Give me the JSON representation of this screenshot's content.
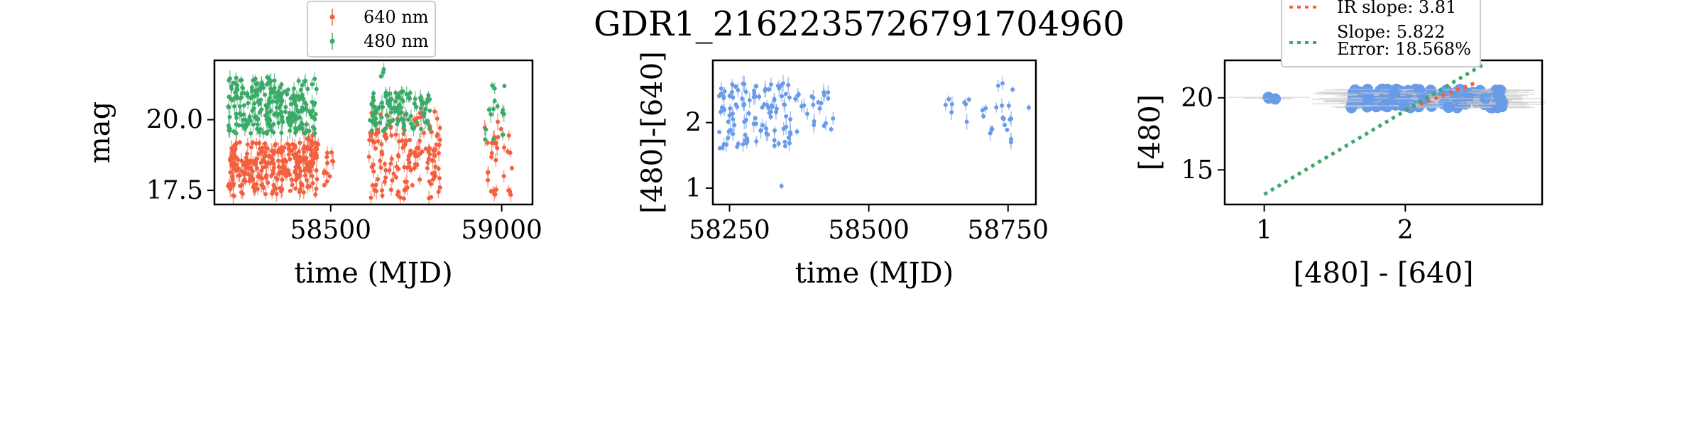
{
  "figure_title": "GDR1_2162235726791704960",
  "colors": {
    "red": "#f4603f",
    "green": "#3aaa68",
    "blue": "#6a9be8",
    "grey": "#c8c8c8"
  },
  "chart_data": [
    {
      "type": "scatter",
      "name": "light-curve",
      "xlabel": "time (MJD)",
      "ylabel": "mag",
      "xlim": [
        58160,
        59090
      ],
      "ylim": [
        22.1,
        17.0
      ],
      "y_inverted": true,
      "xticks": [
        {
          "value": 58500,
          "label": "58500"
        },
        {
          "value": 59000,
          "label": "59000"
        }
      ],
      "yticks": [
        {
          "value": 17.5,
          "label": "17.5"
        },
        {
          "value": 20.0,
          "label": "20.0"
        }
      ],
      "legend": {
        "position": "top-center-outside",
        "entries": [
          "640 nm",
          "480 nm"
        ]
      },
      "series": [
        {
          "name": "640 nm",
          "color": "#f4603f",
          "clusters": [
            {
              "x0": 58200,
              "x1": 58460,
              "ymin": 17.3,
              "ymax": 19.2,
              "n": 260
            },
            {
              "x0": 58420,
              "x1": 58465,
              "ymin": 18.2,
              "ymax": 19.6,
              "n": 30
            },
            {
              "x0": 58480,
              "x1": 58510,
              "ymin": 17.6,
              "ymax": 19.0,
              "n": 12
            },
            {
              "x0": 58610,
              "x1": 58820,
              "ymin": 17.2,
              "ymax": 20.3,
              "n": 150
            },
            {
              "x0": 58950,
              "x1": 59030,
              "ymin": 17.3,
              "ymax": 20.0,
              "n": 30
            }
          ]
        },
        {
          "name": "480 nm",
          "color": "#3aaa68",
          "clusters": [
            {
              "x0": 58200,
              "x1": 58460,
              "ymin": 19.5,
              "ymax": 21.5,
              "n": 260
            },
            {
              "x0": 58610,
              "x1": 58790,
              "ymin": 19.6,
              "ymax": 21.0,
              "n": 110
            },
            {
              "x0": 58640,
              "x1": 58660,
              "ymin": 21.4,
              "ymax": 21.9,
              "n": 3
            },
            {
              "x0": 58950,
              "x1": 59010,
              "ymin": 19.3,
              "ymax": 21.3,
              "n": 16
            }
          ]
        }
      ]
    },
    {
      "type": "scatter",
      "name": "color-curve",
      "xlabel": "time (MJD)",
      "ylabel": "[480]-[640]",
      "xlim": [
        58220,
        58800
      ],
      "ylim": [
        2.95,
        0.75
      ],
      "y_inverted": true,
      "xticks": [
        {
          "value": 58250,
          "label": "58250"
        },
        {
          "value": 58500,
          "label": "58500"
        },
        {
          "value": 58750,
          "label": "58750"
        }
      ],
      "yticks": [
        {
          "value": 1,
          "label": "1"
        },
        {
          "value": 2,
          "label": "2"
        }
      ],
      "series": [
        {
          "name": "",
          "color": "#6a9be8",
          "clusters": [
            {
              "x0": 58230,
              "x1": 58360,
              "ymin": 1.6,
              "ymax": 2.6,
              "n": 110
            },
            {
              "x0": 58360,
              "x1": 58440,
              "ymin": 1.8,
              "ymax": 2.5,
              "n": 25
            },
            {
              "x0": 58340,
              "x1": 58345,
              "ymin": 0.95,
              "ymax": 1.1,
              "n": 1
            },
            {
              "x0": 58630,
              "x1": 58680,
              "ymin": 2.0,
              "ymax": 2.5,
              "n": 8
            },
            {
              "x0": 58700,
              "x1": 58760,
              "ymin": 1.7,
              "ymax": 2.6,
              "n": 20
            },
            {
              "x0": 58785,
              "x1": 58790,
              "ymin": 2.1,
              "ymax": 2.3,
              "n": 1
            }
          ]
        }
      ]
    },
    {
      "type": "scatter",
      "name": "color-magnitude",
      "xlabel": "[480] - [640]",
      "ylabel": "[480]",
      "xlim": [
        0.72,
        2.97
      ],
      "ylim": [
        22.6,
        12.6
      ],
      "y_inverted": true,
      "xticks": [
        {
          "value": 1,
          "label": "1"
        },
        {
          "value": 2,
          "label": "2"
        }
      ],
      "yticks": [
        {
          "value": 15,
          "label": "15"
        },
        {
          "value": 20,
          "label": "20"
        }
      ],
      "legend": {
        "position": "top-center-outside",
        "entries": [
          "IR slope: 3.81",
          "Slope: 5.822\nError: 18.568%"
        ]
      },
      "points": {
        "color": "#6a9be8",
        "clusters": [
          {
            "x0": 1.0,
            "x1": 1.1,
            "ymin": 19.9,
            "ymax": 20.1,
            "n": 3
          },
          {
            "x0": 1.6,
            "x1": 2.7,
            "ymin": 19.3,
            "ymax": 20.6,
            "n": 150
          }
        ]
      },
      "lines": [
        {
          "label": "IR slope: 3.81",
          "color": "#f4603f",
          "style": "dotted",
          "x": [
            2.0,
            2.5
          ],
          "y": [
            19.15,
            21.05
          ]
        },
        {
          "label": "Slope: 5.822\nError: 18.568%",
          "color": "#3aaa68",
          "style": "dotted",
          "x": [
            1.0,
            2.55
          ],
          "y": [
            13.3,
            22.3
          ]
        }
      ]
    }
  ]
}
